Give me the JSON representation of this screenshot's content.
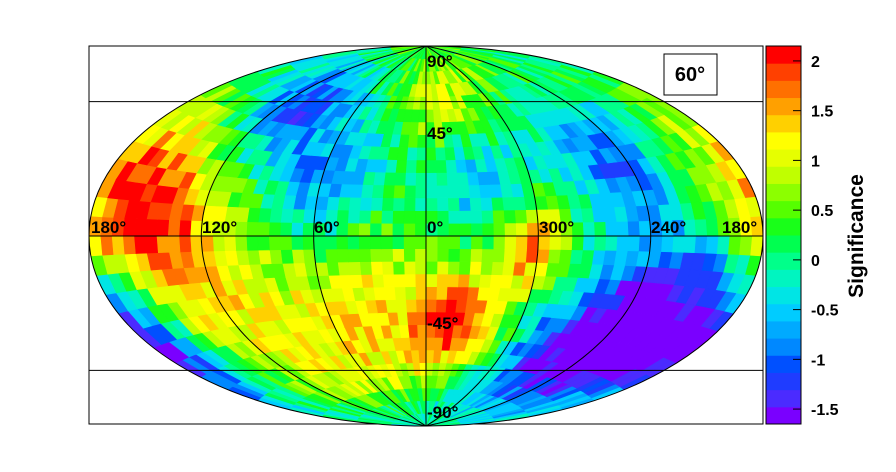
{
  "chart_data": {
    "type": "heatmap",
    "projection": "aitoff",
    "title": "",
    "inset_label": "60°",
    "longitude_labels": [
      "180°",
      "120°",
      "60°",
      "0°",
      "300°",
      "240°",
      "180°"
    ],
    "latitude_labels": [
      "90°",
      "45°",
      "-45°",
      "-90°"
    ],
    "grid": true,
    "colorbar": {
      "label": "Significance",
      "range": [
        -1.65,
        2.15
      ],
      "ticks": [
        2,
        1.5,
        1,
        0.5,
        0,
        -0.5,
        -1,
        -1.5
      ],
      "tick_labels": [
        "2",
        "1.5",
        "1",
        "0.5",
        "0",
        "-0.5",
        "-1",
        "-1.5"
      ],
      "colors": [
        "#7a00ff",
        "#4b2bff",
        "#1f3cff",
        "#0050ff",
        "#0088ff",
        "#00aaff",
        "#00ccff",
        "#00e5e5",
        "#00f5c0",
        "#00ff8a",
        "#00ff50",
        "#19ff19",
        "#55ff00",
        "#8cff00",
        "#c0ff00",
        "#e6ff00",
        "#ffff00",
        "#ffd000",
        "#ffa000",
        "#ff7000",
        "#ff4000",
        "#ff0000"
      ]
    },
    "blobs": [
      {
        "lon": 190,
        "lat": 5,
        "value": 1.2,
        "spread": 28
      },
      {
        "lon": 150,
        "lat": 12,
        "value": 1.6,
        "spread": 22
      },
      {
        "lon": 120,
        "lat": -20,
        "value": 1.1,
        "spread": 30
      },
      {
        "lon": 40,
        "lat": -35,
        "value": 1.2,
        "spread": 28
      },
      {
        "lon": -20,
        "lat": -40,
        "value": 2.0,
        "spread": 16
      },
      {
        "lon": -55,
        "lat": -5,
        "value": 1.8,
        "spread": 14
      },
      {
        "lon": -10,
        "lat": 65,
        "value": 1.2,
        "spread": 18
      },
      {
        "lon": 60,
        "lat": 25,
        "value": -0.9,
        "spread": 22
      },
      {
        "lon": 110,
        "lat": 55,
        "value": -1.0,
        "spread": 18
      },
      {
        "lon": -30,
        "lat": 25,
        "value": -0.6,
        "spread": 20
      },
      {
        "lon": -115,
        "lat": 30,
        "value": -1.0,
        "spread": 22
      },
      {
        "lon": -150,
        "lat": -25,
        "value": -1.6,
        "spread": 22
      },
      {
        "lon": -110,
        "lat": -40,
        "value": -1.2,
        "spread": 22
      },
      {
        "lon": 175,
        "lat": -35,
        "value": -1.3,
        "spread": 16
      },
      {
        "lon": -80,
        "lat": -70,
        "value": -0.3,
        "spread": 25
      },
      {
        "lon": 80,
        "lat": 75,
        "value": 0.3,
        "spread": 20
      }
    ],
    "background_value": 0.35
  }
}
